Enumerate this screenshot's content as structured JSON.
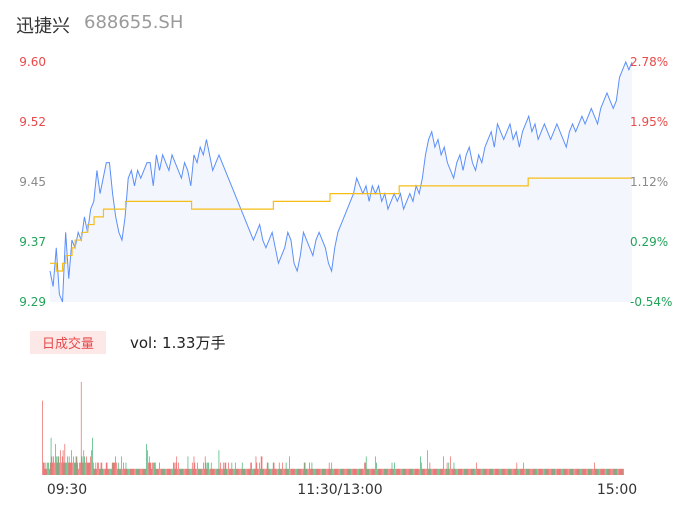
{
  "header": {
    "name": "迅捷兴",
    "code": "688655.SH"
  },
  "volume": {
    "label": "日成交量",
    "text": "vol: 1.33万手"
  },
  "colors": {
    "price_line": "#5b8ff9",
    "avg_line": "#f6bd16",
    "area_fill": "#f3f6fd",
    "up": "#e84a4a",
    "down": "#21a35a",
    "neutral": "#8a8a8a"
  },
  "chart_data": [
    {
      "type": "line",
      "series": [
        {
          "name": "",
          "role": "price",
          "values": [
            9.33,
            9.31,
            9.36,
            9.3,
            9.29,
            9.38,
            9.32,
            9.37,
            9.36,
            9.38,
            9.37,
            9.4,
            9.38,
            9.41,
            9.42,
            9.46,
            9.43,
            9.45,
            9.47,
            9.47,
            9.43,
            9.4,
            9.38,
            9.37,
            9.4,
            9.45,
            9.46,
            9.44,
            9.46,
            9.45,
            9.46,
            9.47,
            9.47,
            9.44,
            9.48,
            9.46,
            9.48,
            9.47,
            9.46,
            9.48,
            9.47,
            9.46,
            9.45,
            9.47,
            9.46,
            9.44,
            9.48,
            9.47,
            9.49,
            9.48,
            9.5,
            9.48,
            9.46,
            9.47,
            9.48,
            9.47,
            9.46,
            9.45,
            9.44,
            9.43,
            9.42,
            9.41,
            9.4,
            9.39,
            9.38,
            9.37,
            9.38,
            9.39,
            9.37,
            9.36,
            9.37,
            9.38,
            9.36,
            9.34,
            9.35,
            9.36,
            9.38,
            9.37,
            9.34,
            9.33,
            9.35,
            9.38,
            9.37,
            9.36,
            9.35,
            9.37,
            9.38,
            9.37,
            9.36,
            9.34,
            9.33,
            9.36,
            9.38,
            9.39,
            9.4,
            9.41,
            9.42,
            9.43,
            9.45,
            9.44,
            9.43,
            9.44,
            9.42,
            9.44,
            9.43,
            9.44,
            9.42,
            9.43,
            9.41,
            9.42,
            9.43,
            9.42,
            9.43,
            9.41,
            9.42,
            9.43,
            9.42,
            9.44,
            9.43,
            9.45,
            9.48,
            9.5,
            9.51,
            9.49,
            9.5,
            9.48,
            9.49,
            9.47,
            9.46,
            9.45,
            9.47,
            9.48,
            9.46,
            9.48,
            9.49,
            9.47,
            9.46,
            9.48,
            9.47,
            9.49,
            9.5,
            9.51,
            9.49,
            9.52,
            9.51,
            9.5,
            9.51,
            9.52,
            9.5,
            9.51,
            9.49,
            9.51,
            9.52,
            9.53,
            9.51,
            9.52,
            9.5,
            9.51,
            9.52,
            9.51,
            9.5,
            9.51,
            9.52,
            9.51,
            9.5,
            9.49,
            9.51,
            9.52,
            9.51,
            9.52,
            9.53,
            9.52,
            9.53,
            9.54,
            9.53,
            9.52,
            9.54,
            9.55,
            9.56,
            9.55,
            9.54,
            9.55,
            9.58,
            9.59,
            9.6,
            9.59,
            9.6
          ]
        },
        {
          "name": "",
          "role": "average",
          "values": [
            9.34,
            9.34,
            9.33,
            9.33,
            9.34,
            9.35,
            9.35,
            9.36,
            9.37,
            9.37,
            9.38,
            9.38,
            9.39,
            9.39,
            9.4,
            9.4,
            9.4,
            9.41,
            9.41,
            9.41,
            9.41,
            9.41,
            9.41,
            9.41,
            9.42,
            9.42,
            9.42,
            9.42,
            9.42,
            9.42,
            9.42,
            9.42,
            9.42,
            9.42,
            9.42,
            9.42,
            9.42,
            9.42,
            9.42,
            9.42,
            9.42,
            9.42,
            9.42,
            9.42,
            9.42,
            9.41,
            9.41,
            9.41,
            9.41,
            9.41,
            9.41,
            9.41,
            9.41,
            9.41,
            9.41,
            9.41,
            9.41,
            9.41,
            9.41,
            9.41,
            9.41,
            9.41,
            9.41,
            9.41,
            9.41,
            9.41,
            9.41,
            9.41,
            9.41,
            9.41,
            9.41,
            9.42,
            9.42,
            9.42,
            9.42,
            9.42,
            9.42,
            9.42,
            9.42,
            9.42,
            9.42,
            9.42,
            9.42,
            9.42,
            9.42,
            9.42,
            9.42,
            9.42,
            9.42,
            9.43,
            9.43,
            9.43,
            9.43,
            9.43,
            9.43,
            9.43,
            9.43,
            9.43,
            9.43,
            9.43,
            9.43,
            9.43,
            9.43,
            9.43,
            9.43,
            9.43,
            9.43,
            9.43,
            9.43,
            9.43,
            9.43,
            9.44,
            9.44,
            9.44,
            9.44,
            9.44,
            9.44,
            9.44,
            9.44,
            9.44,
            9.44,
            9.44,
            9.44,
            9.44,
            9.44,
            9.44,
            9.44,
            9.44,
            9.44,
            9.44,
            9.44,
            9.44,
            9.44,
            9.44,
            9.44,
            9.44,
            9.44,
            9.44,
            9.44,
            9.44,
            9.44,
            9.44,
            9.44,
            9.44,
            9.44,
            9.44,
            9.44,
            9.44,
            9.44,
            9.44,
            9.44,
            9.44,
            9.45,
            9.45,
            9.45,
            9.45,
            9.45,
            9.45,
            9.45,
            9.45,
            9.45,
            9.45,
            9.45,
            9.45,
            9.45,
            9.45,
            9.45,
            9.45,
            9.45,
            9.45,
            9.45,
            9.45,
            9.45,
            9.45,
            9.45,
            9.45,
            9.45,
            9.45,
            9.45,
            9.45,
            9.45,
            9.45,
            9.45,
            9.45,
            9.45,
            9.45
          ]
        }
      ],
      "ylim": [
        9.29,
        9.6
      ],
      "y_ticks": [
        "9.60",
        "9.52",
        "9.45",
        "9.37",
        "9.29"
      ],
      "y2_ticks": [
        "2.78%",
        "1.95%",
        "1.12%",
        "0.29%",
        "-0.54%"
      ],
      "y_tick_colors": [
        "up",
        "up",
        "neutral",
        "down",
        "down"
      ],
      "x_ticks": [
        "09:30",
        "11:30/13:00",
        "15:00"
      ]
    },
    {
      "type": "bar",
      "values": [
        12,
        2,
        2,
        1,
        2,
        1,
        2,
        2,
        1,
        2,
        6,
        3,
        2,
        3,
        2,
        5,
        3,
        2,
        3,
        3,
        2,
        4,
        2,
        3,
        4,
        2,
        5,
        2,
        2,
        3,
        2,
        3,
        2,
        2,
        4,
        2,
        3,
        2,
        2,
        3,
        3,
        2,
        1,
        2,
        2,
        15,
        3,
        2,
        4,
        3,
        2,
        3,
        2,
        2,
        2,
        2,
        3,
        4,
        6,
        2,
        1,
        1,
        2,
        1,
        2,
        2,
        1,
        1,
        2,
        2,
        1,
        1,
        1,
        1,
        2,
        2,
        1,
        1,
        1,
        1,
        1,
        2,
        2,
        2,
        2,
        3,
        2,
        1,
        2,
        1,
        1,
        1,
        3,
        1,
        2,
        1,
        1,
        2,
        1,
        1,
        1,
        1,
        1,
        1,
        1,
        1,
        1,
        1,
        1,
        1,
        1,
        1,
        1,
        1,
        1,
        1,
        1,
        1,
        1,
        1,
        1,
        5,
        4,
        2,
        3,
        2,
        2,
        1,
        2,
        2,
        2,
        2,
        1,
        1,
        1,
        1,
        2,
        1,
        1,
        1,
        1,
        1,
        1,
        1,
        1,
        1,
        1,
        1,
        1,
        1,
        1,
        1,
        2,
        2,
        1,
        2,
        3,
        1,
        2,
        1,
        1,
        1,
        1,
        1,
        1,
        1,
        1,
        1,
        1,
        3,
        1,
        1,
        1,
        1,
        2,
        1,
        3,
        2,
        1,
        1,
        2,
        1,
        1,
        1,
        1,
        1,
        1,
        2,
        1,
        3,
        2,
        1,
        2,
        2,
        1,
        1,
        2,
        1,
        1,
        1,
        1,
        1,
        1,
        1,
        1,
        4,
        1,
        2,
        1,
        1,
        2,
        1,
        2,
        2,
        1,
        1,
        2,
        1,
        1,
        1,
        2,
        1,
        1,
        1,
        2,
        1,
        1,
        1,
        1,
        1,
        1,
        1,
        2,
        1,
        1,
        1,
        1,
        1,
        1,
        1,
        1,
        1,
        2,
        2,
        1,
        1,
        1,
        1,
        3,
        2,
        1,
        1,
        2,
        1,
        3,
        3,
        1,
        1,
        1,
        1,
        1,
        2,
        2,
        1,
        1,
        1,
        1,
        1,
        2,
        2,
        1,
        1,
        1,
        1,
        1,
        2,
        1,
        1,
        1,
        2,
        1,
        1,
        1,
        2,
        1,
        1,
        1,
        3,
        1,
        1,
        1,
        1,
        1,
        1,
        1,
        1,
        1,
        1,
        1,
        1,
        1,
        1,
        1,
        1,
        2,
        2,
        1,
        1,
        1,
        1,
        2,
        1,
        1,
        2,
        1,
        1,
        1,
        1,
        1,
        1,
        1,
        1,
        1,
        1,
        1,
        1,
        1,
        1,
        1,
        1,
        1,
        1,
        1,
        2,
        1,
        1,
        2,
        1,
        1,
        1,
        1,
        1,
        1,
        1,
        1,
        1,
        1,
        1,
        1,
        1,
        1,
        1,
        1,
        1,
        1,
        1,
        1,
        1,
        1,
        1,
        1,
        1,
        1,
        1,
        1,
        1,
        1,
        1,
        1,
        1,
        1,
        1,
        1,
        1,
        2,
        2,
        3,
        1,
        1,
        1,
        1,
        1,
        1,
        1,
        1,
        1,
        1,
        3,
        2,
        1,
        1,
        1,
        1,
        1,
        1,
        1,
        1,
        1,
        1,
        1,
        1,
        1,
        1,
        1,
        1,
        1,
        2,
        1,
        1,
        2,
        1,
        1,
        1,
        1,
        1,
        1,
        1,
        1,
        1,
        1,
        1,
        1,
        1,
        1,
        1,
        1,
        1,
        1,
        1,
        1,
        1,
        1,
        1,
        1,
        1,
        1,
        1,
        1,
        1,
        3,
        2,
        1,
        1,
        1,
        1,
        1,
        1,
        4,
        1,
        1,
        2,
        1,
        1,
        1,
        1,
        1,
        1,
        1,
        1,
        1,
        1,
        1,
        1,
        1,
        1,
        1,
        3,
        1,
        1,
        1,
        2,
        1,
        2,
        1,
        3,
        1,
        1,
        1,
        2,
        1,
        1,
        1,
        1,
        1,
        1,
        1,
        1,
        1,
        1,
        1,
        1,
        1,
        1,
        1,
        1,
        1,
        1,
        1,
        1,
        1,
        1,
        1,
        1,
        1,
        2,
        1,
        1,
        1,
        1,
        1,
        1,
        1,
        1,
        1,
        1,
        1,
        1,
        1,
        1,
        1,
        1,
        1,
        1,
        1,
        1,
        1,
        1,
        1,
        1,
        1,
        1,
        1,
        1,
        1,
        1,
        1,
        1,
        1,
        1,
        1,
        1,
        1,
        1,
        1,
        1,
        1,
        1,
        1,
        1,
        1,
        1,
        2,
        1,
        1,
        1,
        1,
        1,
        1,
        1,
        2,
        1,
        1,
        1,
        1,
        1,
        1,
        1,
        1,
        1,
        1,
        1,
        1,
        1,
        1,
        1,
        1,
        1,
        1,
        1,
        1,
        1,
        1,
        1,
        1,
        1,
        1,
        1,
        1,
        1,
        1,
        1,
        1,
        1,
        1,
        1,
        1,
        1,
        1,
        1,
        1,
        1,
        1,
        1,
        1,
        1,
        1,
        1,
        1,
        1,
        1,
        1,
        1,
        1,
        1,
        1,
        1,
        1,
        1,
        1,
        1,
        1,
        1,
        1,
        1,
        1,
        1,
        1,
        1,
        1,
        1,
        1,
        1,
        1,
        1,
        1,
        1,
        1,
        1,
        1,
        1,
        1,
        2,
        1,
        1,
        1,
        1,
        1,
        1,
        1,
        1,
        1,
        1,
        1,
        1,
        1,
        1,
        1,
        1,
        1,
        1,
        1,
        1,
        1,
        1,
        1,
        1,
        1,
        1,
        1,
        1,
        1,
        1,
        1,
        1,
        1,
        1
      ],
      "colors": [
        "up",
        "down"
      ]
    }
  ]
}
